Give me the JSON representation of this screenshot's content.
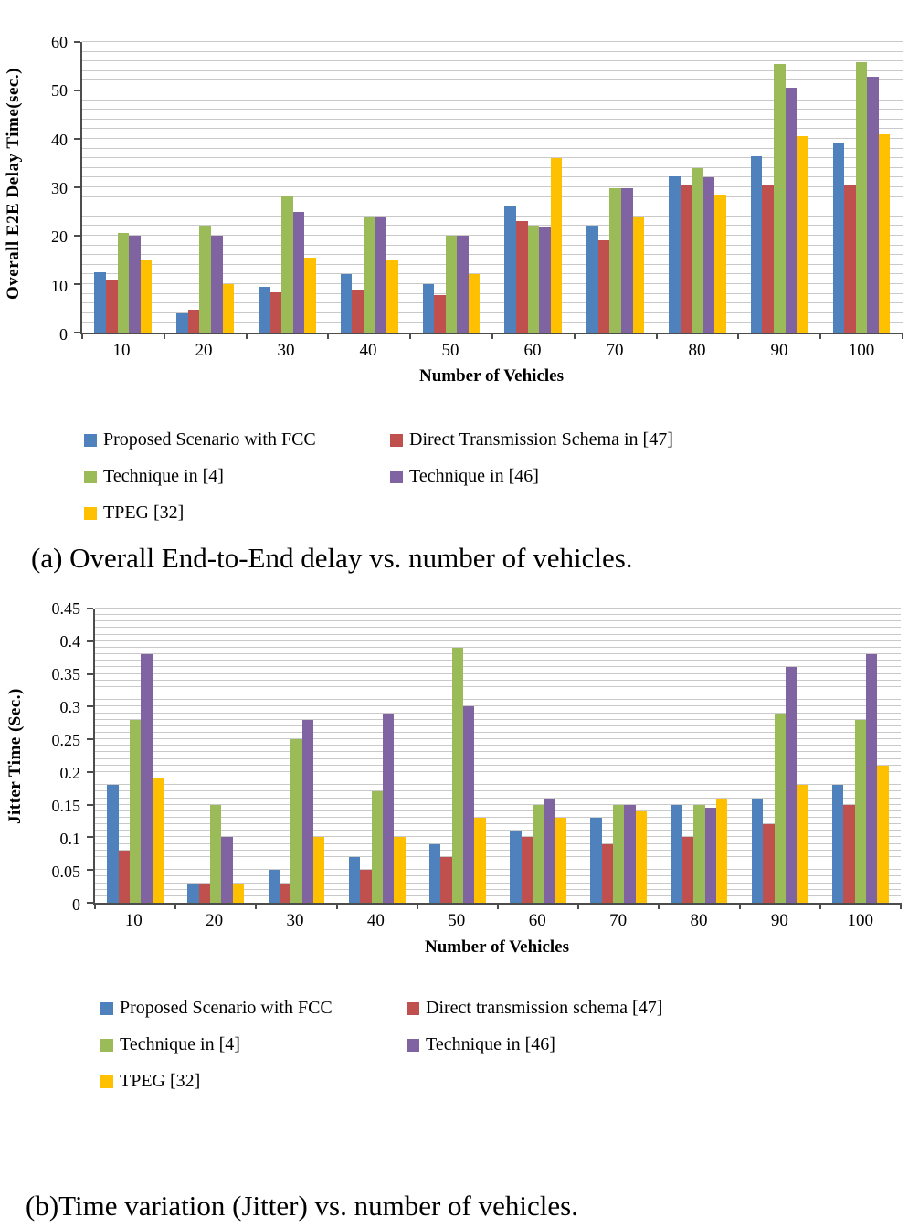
{
  "chart_data": [
    {
      "type": "bar",
      "caption": "(a) Overall End-to-End delay vs. number of vehicles.",
      "ylabel": "Overall E2E Delay Time(sec.)",
      "xlabel": "Number of Vehicles",
      "ylim": [
        0,
        60
      ],
      "grid_step": 2,
      "grid": true,
      "legend_position": "below",
      "yticks": [
        {
          "value": 0,
          "label": "0"
        },
        {
          "value": 10,
          "label": "10"
        },
        {
          "value": 20,
          "label": "20"
        },
        {
          "value": 30,
          "label": "30"
        },
        {
          "value": 40,
          "label": "40"
        },
        {
          "value": 50,
          "label": "50"
        },
        {
          "value": 60,
          "label": "60"
        }
      ],
      "categories": [
        "10",
        "20",
        "30",
        "40",
        "50",
        "60",
        "70",
        "80",
        "90",
        "100"
      ],
      "series": [
        {
          "name": "Proposed Scenario with FCC",
          "color": "#4F81BD",
          "values": [
            12.5,
            4,
            9.5,
            12,
            10,
            26,
            22,
            32.3,
            36.5,
            39
          ]
        },
        {
          "name": "Direct Transmission Schema in [47]",
          "color": "#C0504D",
          "values": [
            11,
            4.8,
            8.3,
            8.8,
            7.8,
            23,
            19,
            30.3,
            30.3,
            30.5
          ]
        },
        {
          "name": "Technique in [4]",
          "color": "#9BBB59",
          "values": [
            20.5,
            22,
            28.3,
            23.8,
            20,
            22,
            29.8,
            34,
            55.5,
            55.8
          ]
        },
        {
          "name": "Technique in [46]",
          "color": "#8064A2",
          "values": [
            20,
            20,
            25,
            23.8,
            20,
            21.8,
            29.8,
            32,
            50.5,
            52.8
          ]
        },
        {
          "name": "TPEG [32]",
          "color": "#FFC000",
          "values": [
            15,
            10,
            15.5,
            15,
            12,
            36,
            23.8,
            28.5,
            40.5,
            41
          ]
        }
      ]
    },
    {
      "type": "bar",
      "caption": "(b)Time variation (Jitter) vs. number of vehicles.",
      "ylabel": "Jitter Time (Sec.)",
      "xlabel": "Number of Vehicles",
      "ylim": [
        0,
        0.45
      ],
      "grid_step": 0.01,
      "grid": true,
      "legend_position": "below",
      "yticks": [
        {
          "value": 0,
          "label": "0"
        },
        {
          "value": 0.05,
          "label": "0.05"
        },
        {
          "value": 0.1,
          "label": "0.1"
        },
        {
          "value": 0.15,
          "label": "0.15"
        },
        {
          "value": 0.2,
          "label": "0.2"
        },
        {
          "value": 0.25,
          "label": "0.25"
        },
        {
          "value": 0.3,
          "label": "0.3"
        },
        {
          "value": 0.35,
          "label": "0.35"
        },
        {
          "value": 0.4,
          "label": "0.4"
        },
        {
          "value": 0.45,
          "label": "0.45"
        }
      ],
      "categories": [
        "10",
        "20",
        "30",
        "40",
        "50",
        "60",
        "70",
        "80",
        "90",
        "100"
      ],
      "series": [
        {
          "name": "Proposed Scenario with FCC",
          "color": "#4F81BD",
          "values": [
            0.18,
            0.03,
            0.05,
            0.07,
            0.09,
            0.11,
            0.13,
            0.15,
            0.16,
            0.18
          ]
        },
        {
          "name": "Direct transmission schema [47]",
          "color": "#C0504D",
          "values": [
            0.08,
            0.03,
            0.03,
            0.05,
            0.07,
            0.1,
            0.09,
            0.1,
            0.12,
            0.15
          ]
        },
        {
          "name": "Technique in [4]",
          "color": "#9BBB59",
          "values": [
            0.28,
            0.15,
            0.25,
            0.17,
            0.39,
            0.15,
            0.15,
            0.15,
            0.29,
            0.28
          ]
        },
        {
          "name": "Technique in [46]",
          "color": "#8064A2",
          "values": [
            0.38,
            0.1,
            0.28,
            0.29,
            0.3,
            0.16,
            0.15,
            0.145,
            0.36,
            0.38
          ]
        },
        {
          "name": "TPEG [32]",
          "color": "#FFC000",
          "values": [
            0.19,
            0.03,
            0.1,
            0.1,
            0.13,
            0.13,
            0.14,
            0.16,
            0.18,
            0.21
          ]
        }
      ]
    }
  ]
}
